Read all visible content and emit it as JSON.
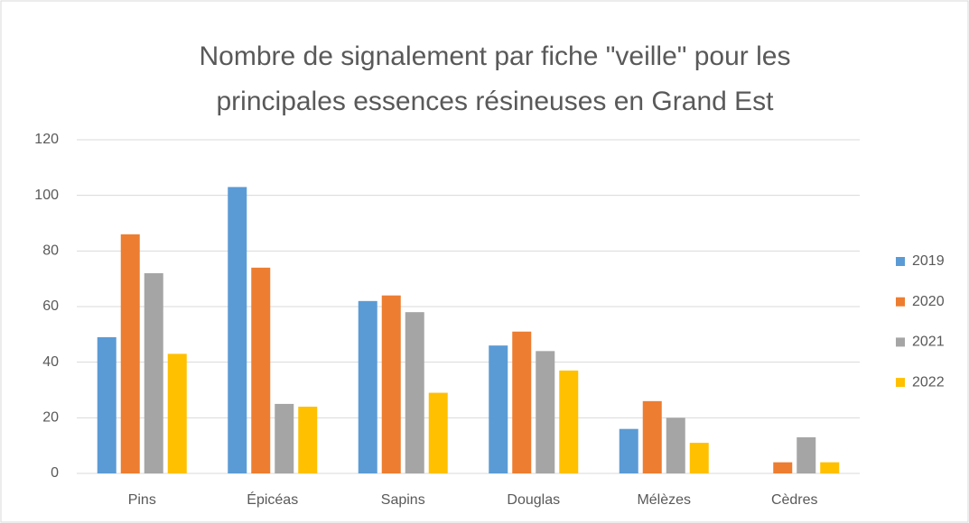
{
  "chart_data": {
    "type": "bar",
    "title": "Nombre de signalement par fiche \"veille\" pour les principales essences résineuses en Grand Est",
    "categories": [
      "Pins",
      "Épicéas",
      "Sapins",
      "Douglas",
      "Mélèzes",
      "Cèdres"
    ],
    "series": [
      {
        "name": "2019",
        "color": "#5b9bd5",
        "values": [
          49,
          103,
          62,
          46,
          16,
          0
        ]
      },
      {
        "name": "2020",
        "color": "#ed7d31",
        "values": [
          86,
          74,
          64,
          51,
          26,
          4
        ]
      },
      {
        "name": "2021",
        "color": "#a5a5a5",
        "values": [
          72,
          25,
          58,
          44,
          20,
          13
        ]
      },
      {
        "name": "2022",
        "color": "#ffc000",
        "values": [
          43,
          24,
          29,
          37,
          11,
          4
        ]
      }
    ],
    "ylim": [
      0,
      120
    ],
    "yticks": [
      0,
      20,
      40,
      60,
      80,
      100,
      120
    ],
    "grid": true,
    "legend": "right"
  }
}
